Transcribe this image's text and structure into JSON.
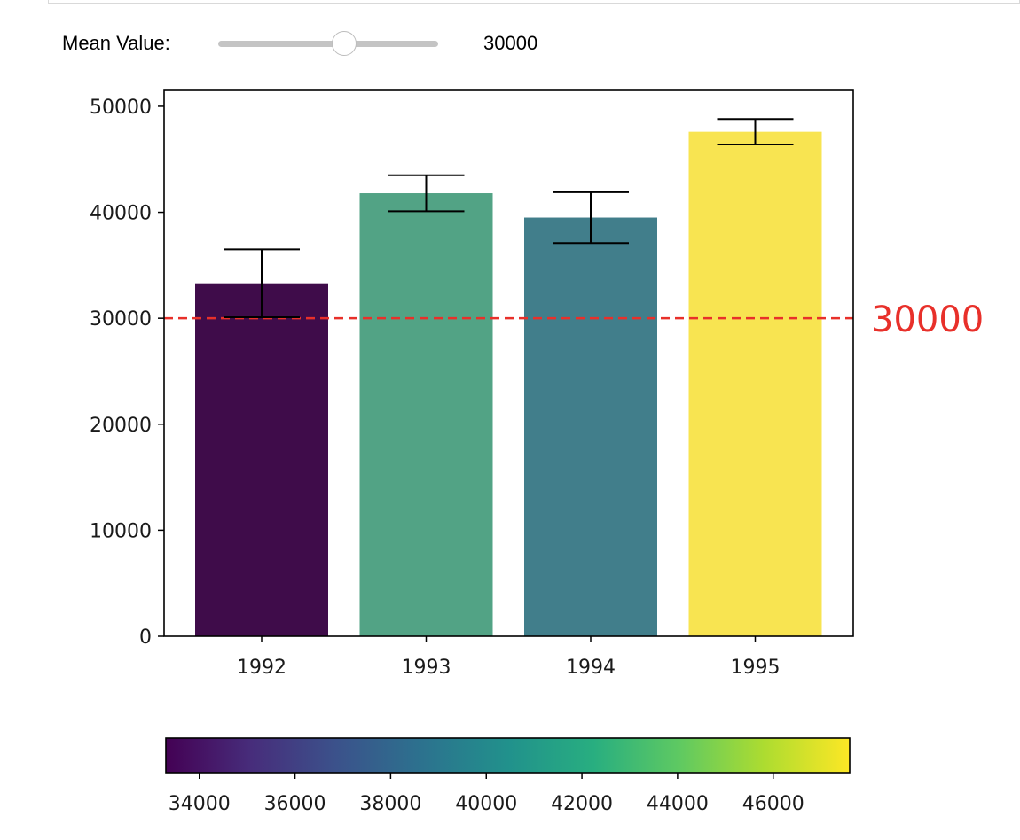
{
  "widget": {
    "label": "Mean Value:",
    "value": 30000,
    "readout": "30000",
    "slider_min": 0,
    "slider_max": 50000
  },
  "chart_data": {
    "type": "bar",
    "categories": [
      "1992",
      "1993",
      "1994",
      "1995"
    ],
    "values": [
      33300,
      41800,
      39500,
      47600
    ],
    "errors": [
      3200,
      1700,
      2400,
      1200
    ],
    "ylim": [
      0,
      51500
    ],
    "yticks": [
      0,
      10000,
      20000,
      30000,
      40000,
      50000
    ],
    "reference_line": {
      "value": 30000,
      "label": "30000",
      "color": "#e8302a",
      "style": "dashed"
    },
    "bar_colors": [
      "#3f0c4a",
      "#52a385",
      "#417e8b",
      "#f8e451"
    ],
    "colorbar": {
      "colormap": "viridis",
      "range": [
        33300,
        47600
      ],
      "ticks": [
        34000,
        36000,
        38000,
        40000,
        42000,
        44000,
        46000
      ],
      "placement": "bottom"
    },
    "title": "",
    "xlabel": "",
    "ylabel": ""
  }
}
